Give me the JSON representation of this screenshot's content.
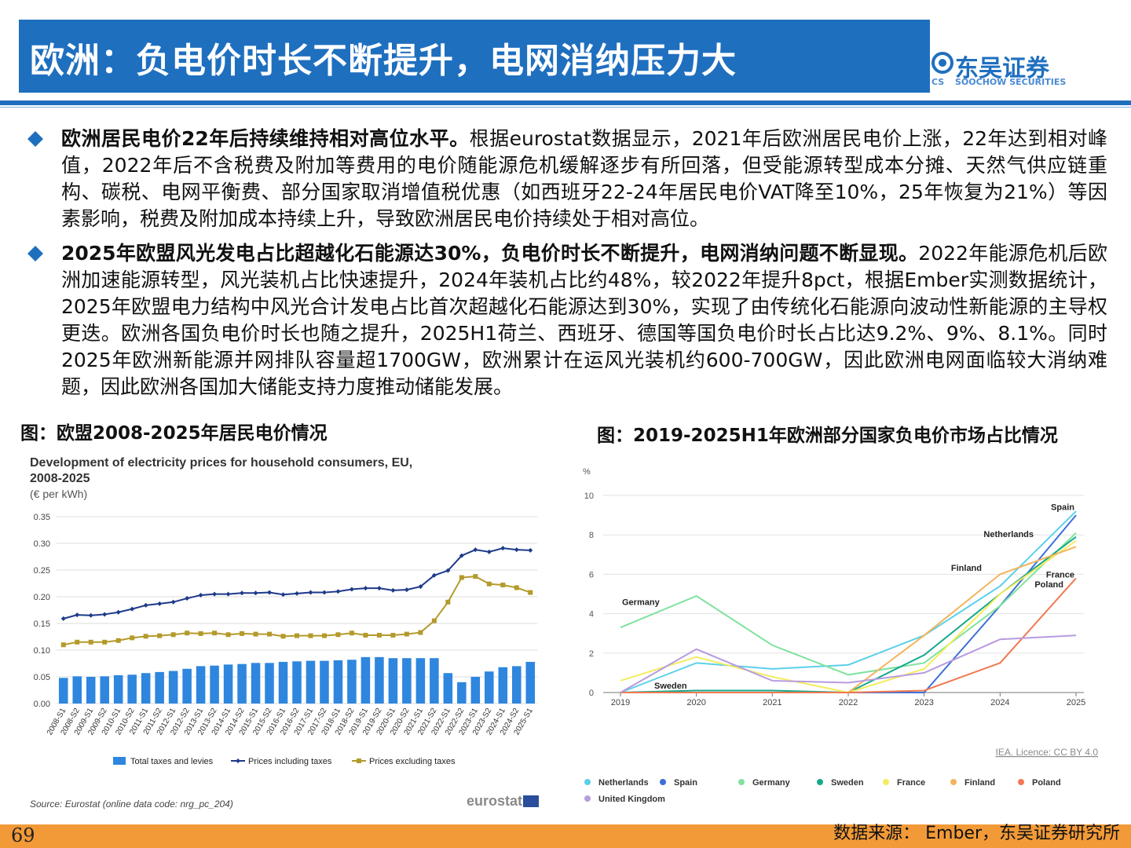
{
  "header": {
    "title": "欧洲：负电价时长不断提升，电网消纳压力大",
    "logo_cn": "东吴证券",
    "logo_en": "SOOCHOW SECURITIES",
    "logo_mark": "CS"
  },
  "bullets": [
    {
      "bold": "欧洲居民电价22年后持续维持相对高位水平。",
      "text": "根据eurostat数据显示，2021年后欧洲居民电价上涨，22年达到相对峰值，2022年后不含税费及附加等费用的电价随能源危机缓解逐步有所回落，但受能源转型成本分摊、天然气供应链重构、碳税、电网平衡费、部分国家取消增值税优惠（如西班牙22-24年居民电价VAT降至10%，25年恢复为21%）等因素影响，税费及附加成本持续上升，导致欧洲居民电价持续处于相对高位。"
    },
    {
      "bold": "2025年欧盟风光发电占比超越化石能源达30%，负电价时长不断提升，电网消纳问题不断显现。",
      "text": "2022年能源危机后欧洲加速能源转型，风光装机占比快速提升，2024年装机占比约48%，较2022年提升8pct，根据Ember实测数据统计，2025年欧盟电力结构中风光合计发电占比首次超越化石能源达到30%，实现了由传统化石能源向波动性新能源的主导权更迭。欧洲各国负电价时长也随之提升，2025H1荷兰、西班牙、德国等国负电价时长占比达9.2%、9%、8.1%。同时2025年欧洲新能源并网排队容量超1700GW，欧洲累计在运风光装机约600-700GW，因此欧洲电网面临较大消纳难题，因此欧洲各国加大储能支持力度推动储能发展。"
    }
  ],
  "captions": {
    "left": "图：欧盟2008-2025年居民电价情况",
    "right": "图：2019-2025H1年欧洲部分国家负电价市场占比情况"
  },
  "chart_data": [
    {
      "type": "bar",
      "title": "Development of electricity prices for household consumers, EU, 2008-2025",
      "title_line1": "Development of electricity prices for household consumers, EU,",
      "title_line2": "2008-2025",
      "unit": "(€ per kWh)",
      "ylim": [
        0,
        0.35
      ],
      "yticks": [
        "0.00",
        "0.05",
        "0.10",
        "0.15",
        "0.20",
        "0.25",
        "0.30",
        "0.35"
      ],
      "grid": true,
      "legend_position": "bottom",
      "categories": [
        "2008-S1",
        "2008-S2",
        "2009-S1",
        "2009-S2",
        "2010-S1",
        "2010-S2",
        "2011-S1",
        "2011-S2",
        "2012-S1",
        "2012-S2",
        "2013-S1",
        "2013-S2",
        "2014-S1",
        "2014-S2",
        "2015-S1",
        "2015-S2",
        "2016-S1",
        "2016-S2",
        "2017-S1",
        "2017-S2",
        "2018-S1",
        "2018-S2",
        "2019-S1",
        "2019-S2",
        "2020-S1",
        "2020-S2",
        "2021-S1",
        "2021-S2",
        "2022-S1",
        "2022-S2",
        "2023-S1",
        "2023-S2",
        "2024-S1",
        "2024-S2",
        "2025-S1"
      ],
      "series": [
        {
          "name": "Total taxes and levies",
          "kind": "bar",
          "color": "#2e86de",
          "values": [
            0.048,
            0.051,
            0.05,
            0.051,
            0.053,
            0.054,
            0.057,
            0.059,
            0.061,
            0.065,
            0.07,
            0.071,
            0.073,
            0.074,
            0.076,
            0.076,
            0.078,
            0.079,
            0.08,
            0.08,
            0.081,
            0.082,
            0.087,
            0.087,
            0.085,
            0.085,
            0.085,
            0.085,
            0.057,
            0.04,
            0.05,
            0.06,
            0.068,
            0.07,
            0.078
          ]
        },
        {
          "name": "Prices including taxes",
          "kind": "line",
          "color": "#1e3a8a",
          "values": [
            0.159,
            0.166,
            0.165,
            0.167,
            0.171,
            0.177,
            0.184,
            0.187,
            0.19,
            0.197,
            0.203,
            0.205,
            0.205,
            0.207,
            0.207,
            0.208,
            0.204,
            0.206,
            0.208,
            0.208,
            0.21,
            0.214,
            0.216,
            0.216,
            0.212,
            0.213,
            0.219,
            0.24,
            0.249,
            0.277,
            0.288,
            0.284,
            0.291,
            0.288,
            0.287
          ]
        },
        {
          "name": "Prices excluding taxes",
          "kind": "line",
          "color": "#b39a2a",
          "values": [
            0.11,
            0.115,
            0.115,
            0.115,
            0.118,
            0.123,
            0.126,
            0.127,
            0.129,
            0.132,
            0.131,
            0.132,
            0.129,
            0.131,
            0.13,
            0.13,
            0.126,
            0.127,
            0.127,
            0.127,
            0.129,
            0.132,
            0.128,
            0.128,
            0.128,
            0.13,
            0.133,
            0.155,
            0.19,
            0.236,
            0.238,
            0.224,
            0.222,
            0.217,
            0.208
          ]
        }
      ],
      "source": "Source: Eurostat (online data code: nrg_pc_204)",
      "brand": "eurostat"
    },
    {
      "type": "line",
      "ylabel": "%",
      "ylim": [
        0,
        10
      ],
      "yticks": [
        "0",
        "2",
        "4",
        "6",
        "8",
        "10"
      ],
      "x": [
        "2019",
        "2020",
        "2021",
        "2022",
        "2023",
        "2024",
        "2025"
      ],
      "grid": true,
      "legend_position": "bottom",
      "series": [
        {
          "name": "Netherlands",
          "color": "#5bd0ea",
          "values": [
            0,
            1.5,
            1.2,
            1.4,
            2.9,
            5.4,
            9.2
          ],
          "label": "Netherlands"
        },
        {
          "name": "Spain",
          "color": "#3d6fd8",
          "values": [
            0,
            0,
            0,
            0,
            0,
            4.4,
            9.0
          ],
          "label": "Spain"
        },
        {
          "name": "Germany",
          "color": "#7fe39e",
          "values": [
            3.3,
            4.9,
            2.4,
            0.9,
            1.5,
            4.4,
            8.1
          ],
          "label": "Germany"
        },
        {
          "name": "Sweden",
          "color": "#17a88a",
          "values": [
            0,
            0.1,
            0.1,
            0,
            1.9,
            5.0,
            7.9
          ],
          "label": "Sweden"
        },
        {
          "name": "France",
          "color": "#f3ec60",
          "values": [
            0.6,
            1.8,
            0.8,
            0,
            1.2,
            5.0,
            7.7
          ],
          "label": "France"
        },
        {
          "name": "Finland",
          "color": "#f3b45c",
          "values": [
            0,
            0,
            0,
            0,
            2.9,
            6.0,
            7.4
          ],
          "label": "Finland"
        },
        {
          "name": "Poland",
          "color": "#f07a52",
          "values": [
            0,
            0,
            0,
            0,
            0.1,
            1.5,
            5.8
          ],
          "label": "Poland"
        },
        {
          "name": "United Kingdom",
          "color": "#b79be0",
          "values": [
            0,
            2.2,
            0.6,
            0.5,
            1.0,
            2.7,
            2.9
          ],
          "label": ""
        }
      ],
      "licence": "IEA. Licence: CC BY 4.0"
    }
  ],
  "footer": {
    "page": "69",
    "source": "数据来源： Ember，东吴证券研究所"
  }
}
